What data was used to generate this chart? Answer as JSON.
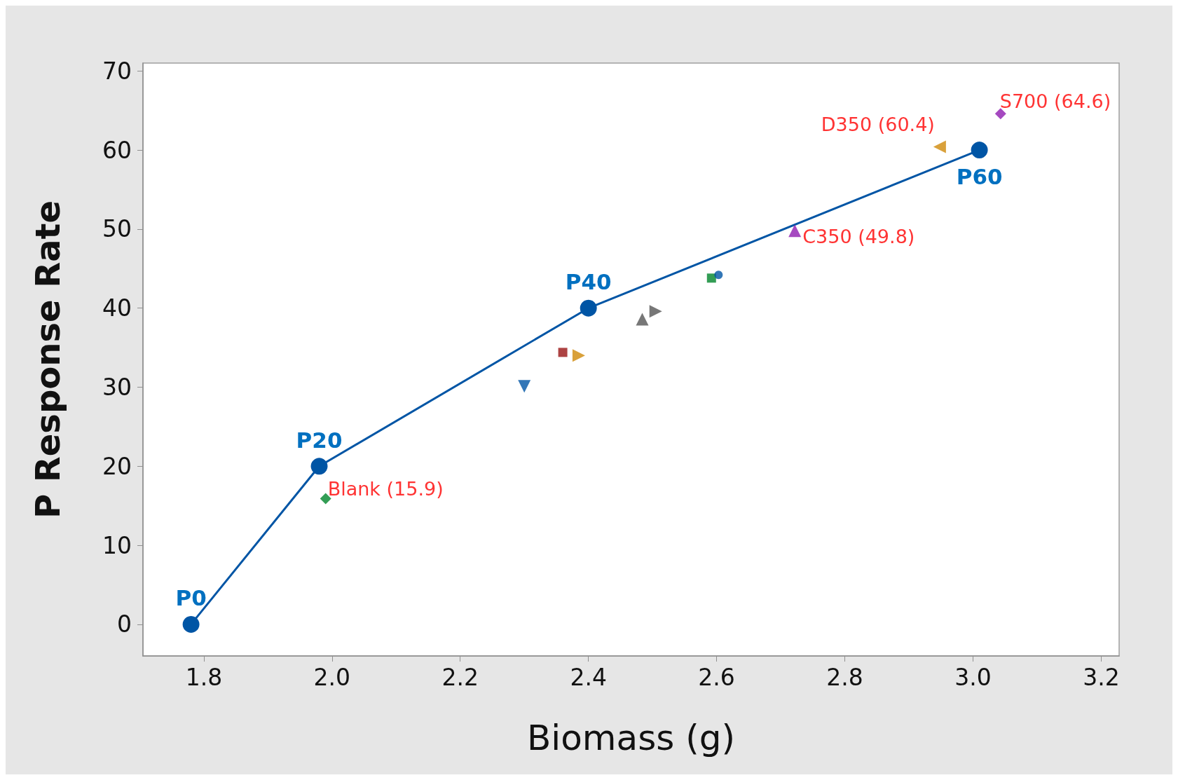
{
  "chart_data": {
    "type": "scatter",
    "xlabel": "Biomass (g)",
    "ylabel": "P Response Rate",
    "xlim": [
      1.705,
      3.228
    ],
    "ylim": [
      -4,
      71
    ],
    "xticks": [
      1.8,
      {
        "value": 2,
        "label": "2.0"
      },
      2.2,
      2.4,
      2.6,
      2.8,
      {
        "value": 3,
        "label": "3.0"
      },
      3.2
    ],
    "yticks": [
      0,
      10,
      20,
      30,
      40,
      50,
      60,
      70
    ],
    "grid": false,
    "series": [
      {
        "type": "line",
        "color": "#0055a5",
        "marker": "circle",
        "line_style": "solid",
        "x": [
          1.78,
          1.98,
          2.4,
          3.01
        ],
        "values": [
          0,
          20,
          40,
          60
        ],
        "value_labels": [
          "P0",
          "P20",
          "P40",
          "P60"
        ]
      },
      {
        "color": "#00852a",
        "marker": "diamond",
        "x": [
          1.99
        ],
        "values": [
          15.9
        ]
      },
      {
        "color": "#0055a5",
        "marker": "triangle-down",
        "x": [
          2.3
        ],
        "values": [
          30.1
        ]
      },
      {
        "color": "#991414",
        "marker": "square",
        "x": [
          2.36
        ],
        "values": [
          34.4
        ]
      },
      {
        "color": "#d08a0a",
        "marker": "triangle-right",
        "x": [
          2.385
        ],
        "values": [
          34.0
        ]
      },
      {
        "color": "#555555",
        "marker": "triangle",
        "x": [
          2.484
        ],
        "values": [
          38.6
        ]
      },
      {
        "color": "#555555",
        "marker": "triangle-right",
        "x": [
          2.505
        ],
        "values": [
          39.6
        ]
      },
      {
        "color": "#00852a",
        "marker": "square",
        "x": [
          2.592
        ],
        "values": [
          43.8
        ]
      },
      {
        "color": "#0055a5",
        "marker": "circle",
        "x": [
          2.603
        ],
        "values": [
          44.2
        ]
      },
      {
        "color": "#8e1cb0",
        "marker": "triangle",
        "x": [
          2.722
        ],
        "values": [
          49.8
        ]
      },
      {
        "color": "#d08a0a",
        "marker": "triangle-left",
        "x": [
          2.948
        ],
        "values": [
          60.4
        ]
      },
      {
        "color": "#8e1cb0",
        "marker": "diamond",
        "x": [
          3.043
        ],
        "values": [
          64.6
        ]
      }
    ],
    "annotations": [
      {
        "text": "Blank (15.9)",
        "x": 1.99,
        "y": 15.9
      },
      {
        "text": "C350 (49.8)",
        "x": 2.722,
        "y": 49.8
      },
      {
        "text": "D350 (60.4)",
        "x": 2.948,
        "y": 60.4
      },
      {
        "text": "S700 (64.6)",
        "x": 3.043,
        "y": 64.6
      }
    ]
  }
}
